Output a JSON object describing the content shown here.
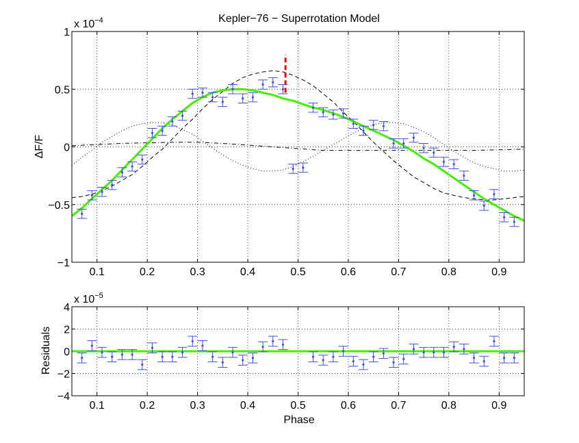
{
  "chart_data": [
    {
      "type": "scatter",
      "title": "Kepler−76 − Superrotation Model",
      "ylabel": "ΔF/F",
      "xlabel": "",
      "exponent_base": "x 10",
      "exponent_power": "−4",
      "xlim": [
        0.05,
        0.95
      ],
      "ylim": [
        -1,
        1
      ],
      "grid": true,
      "x_ticks": [
        0.1,
        0.2,
        0.3,
        0.4,
        0.5,
        0.6,
        0.7,
        0.8,
        0.9
      ],
      "x_tick_labels": [
        "0.1",
        "0.2",
        "0.3",
        "0.4",
        "0.5",
        "0.6",
        "0.7",
        "0.8",
        "0.9"
      ],
      "y_ticks": [
        -1,
        -0.5,
        0,
        0.5,
        1
      ],
      "y_tick_labels": [
        "−1",
        "−0.5",
        "0",
        "0.5",
        "1"
      ],
      "data_points": {
        "x": [
          0.07,
          0.09,
          0.11,
          0.13,
          0.15,
          0.17,
          0.19,
          0.21,
          0.23,
          0.25,
          0.27,
          0.29,
          0.31,
          0.33,
          0.35,
          0.37,
          0.39,
          0.41,
          0.43,
          0.45,
          0.47,
          0.49,
          0.51,
          0.53,
          0.55,
          0.57,
          0.59,
          0.61,
          0.63,
          0.65,
          0.67,
          0.69,
          0.71,
          0.73,
          0.75,
          0.77,
          0.79,
          0.81,
          0.83,
          0.85,
          0.87,
          0.89,
          0.91,
          0.93
        ],
        "y": [
          -0.58,
          -0.42,
          -0.39,
          -0.33,
          -0.22,
          -0.17,
          -0.11,
          0.12,
          0.14,
          0.22,
          0.27,
          0.46,
          0.47,
          0.43,
          0.39,
          0.5,
          0.42,
          0.43,
          0.54,
          0.56,
          0.5,
          -0.19,
          -0.18,
          0.34,
          0.3,
          0.28,
          0.29,
          0.2,
          0.14,
          0.19,
          0.18,
          0.03,
          0.03,
          0.08,
          -0.01,
          -0.05,
          -0.13,
          -0.15,
          -0.25,
          -0.42,
          -0.51,
          -0.41,
          -0.61,
          -0.65
        ],
        "err": [
          0.04,
          0.04,
          0.04,
          0.04,
          0.04,
          0.04,
          0.04,
          0.04,
          0.04,
          0.04,
          0.04,
          0.04,
          0.04,
          0.04,
          0.04,
          0.04,
          0.04,
          0.04,
          0.04,
          0.04,
          0.04,
          0.04,
          0.04,
          0.04,
          0.04,
          0.04,
          0.04,
          0.04,
          0.04,
          0.04,
          0.04,
          0.04,
          0.04,
          0.04,
          0.04,
          0.04,
          0.04,
          0.04,
          0.04,
          0.04,
          0.04,
          0.04,
          0.04,
          0.04
        ]
      },
      "model_curve": {
        "x": [
          0.05,
          0.07,
          0.09,
          0.11,
          0.13,
          0.15,
          0.17,
          0.19,
          0.21,
          0.23,
          0.25,
          0.27,
          0.29,
          0.31,
          0.33,
          0.35,
          0.37,
          0.39,
          0.41,
          0.43,
          0.45,
          0.47,
          0.49,
          0.51,
          0.53,
          0.55,
          0.57,
          0.59,
          0.61,
          0.63,
          0.65,
          0.67,
          0.69,
          0.71,
          0.73,
          0.75,
          0.77,
          0.79,
          0.81,
          0.83,
          0.85,
          0.87,
          0.89,
          0.91,
          0.93,
          0.95
        ],
        "y": [
          -0.6,
          -0.53,
          -0.45,
          -0.37,
          -0.29,
          -0.2,
          -0.11,
          -0.02,
          0.07,
          0.16,
          0.24,
          0.31,
          0.38,
          0.43,
          0.47,
          0.49,
          0.5,
          0.5,
          0.49,
          0.47,
          0.45,
          0.42,
          0.4,
          0.37,
          0.34,
          0.32,
          0.29,
          0.26,
          0.22,
          0.18,
          0.14,
          0.1,
          0.06,
          0.01,
          -0.04,
          -0.1,
          -0.15,
          -0.21,
          -0.27,
          -0.33,
          -0.39,
          -0.45,
          -0.5,
          -0.55,
          -0.6,
          -0.64
        ]
      },
      "dashed_curve": {
        "x": [
          0.05,
          0.07,
          0.09,
          0.11,
          0.13,
          0.15,
          0.17,
          0.19,
          0.21,
          0.23,
          0.25,
          0.27,
          0.29,
          0.31,
          0.33,
          0.35,
          0.37,
          0.39,
          0.41,
          0.43,
          0.45,
          0.47,
          0.49,
          0.51,
          0.53,
          0.55,
          0.57,
          0.59,
          0.61,
          0.63,
          0.65,
          0.67,
          0.69,
          0.71,
          0.73,
          0.75,
          0.77,
          0.79,
          0.81,
          0.83,
          0.85,
          0.87,
          0.89,
          0.91,
          0.93,
          0.95
        ],
        "y": [
          -0.44,
          -0.43,
          -0.41,
          -0.38,
          -0.34,
          -0.29,
          -0.24,
          -0.17,
          -0.09,
          -0.02,
          0.07,
          0.16,
          0.24,
          0.33,
          0.41,
          0.48,
          0.55,
          0.6,
          0.63,
          0.65,
          0.66,
          0.65,
          0.62,
          0.58,
          0.53,
          0.46,
          0.39,
          0.3,
          0.22,
          0.13,
          0.04,
          -0.04,
          -0.12,
          -0.19,
          -0.26,
          -0.31,
          -0.36,
          -0.4,
          -0.42,
          -0.44,
          -0.45,
          -0.46,
          -0.46,
          -0.45,
          -0.44,
          -0.43
        ]
      },
      "dotted_curve": {
        "x": [
          0.05,
          0.07,
          0.09,
          0.11,
          0.13,
          0.15,
          0.17,
          0.19,
          0.21,
          0.23,
          0.25,
          0.27,
          0.29,
          0.31,
          0.33,
          0.35,
          0.37,
          0.39,
          0.41,
          0.43,
          0.45,
          0.47,
          0.49,
          0.51,
          0.53,
          0.55,
          0.57,
          0.59,
          0.61,
          0.63,
          0.65,
          0.67,
          0.69,
          0.71,
          0.73,
          0.75,
          0.77,
          0.79,
          0.81,
          0.83,
          0.85,
          0.87,
          0.89,
          0.91,
          0.93,
          0.95
        ],
        "y": [
          -0.16,
          -0.09,
          -0.03,
          0.04,
          0.09,
          0.14,
          0.18,
          0.2,
          0.21,
          0.21,
          0.19,
          0.15,
          0.11,
          0.05,
          -0.01,
          -0.07,
          -0.12,
          -0.16,
          -0.19,
          -0.21,
          -0.21,
          -0.2,
          -0.17,
          -0.13,
          -0.08,
          -0.03,
          0.02,
          0.07,
          0.12,
          0.16,
          0.19,
          0.21,
          0.21,
          0.2,
          0.17,
          0.13,
          0.08,
          0.02,
          -0.04,
          -0.09,
          -0.14,
          -0.17,
          -0.19,
          -0.21,
          -0.21,
          -0.2
        ]
      },
      "dashdot_curve": {
        "x": [
          0.05,
          0.15,
          0.25,
          0.3,
          0.35,
          0.45,
          0.55,
          0.65,
          0.75,
          0.85,
          0.95
        ],
        "y": [
          0.01,
          0.03,
          0.04,
          0.04,
          0.03,
          0.0,
          -0.03,
          -0.03,
          -0.03,
          -0.03,
          -0.02
        ]
      },
      "marker_line": {
        "x": 0.475,
        "y0": 0.47,
        "y1": 0.8,
        "color": "#ff0000"
      }
    },
    {
      "type": "scatter",
      "title": "",
      "ylabel": "Residuals",
      "xlabel": "Phase",
      "exponent_base": "x 10",
      "exponent_power": "−5",
      "xlim": [
        0.05,
        0.95
      ],
      "ylim": [
        -4,
        4
      ],
      "grid": true,
      "x_ticks": [
        0.1,
        0.2,
        0.3,
        0.4,
        0.5,
        0.6,
        0.7,
        0.8,
        0.9
      ],
      "x_tick_labels": [
        "0.1",
        "0.2",
        "0.3",
        "0.4",
        "0.5",
        "0.6",
        "0.7",
        "0.8",
        "0.9"
      ],
      "y_ticks": [
        -4,
        -2,
        0,
        2,
        4
      ],
      "y_tick_labels": [
        "−4",
        "−2",
        "0",
        "2",
        "4"
      ],
      "data_points": {
        "x": [
          0.07,
          0.09,
          0.11,
          0.13,
          0.15,
          0.17,
          0.19,
          0.21,
          0.23,
          0.25,
          0.27,
          0.29,
          0.31,
          0.33,
          0.35,
          0.37,
          0.39,
          0.41,
          0.43,
          0.45,
          0.47,
          0.53,
          0.55,
          0.57,
          0.59,
          0.61,
          0.63,
          0.65,
          0.67,
          0.69,
          0.71,
          0.73,
          0.75,
          0.77,
          0.79,
          0.81,
          0.83,
          0.85,
          0.87,
          0.89,
          0.91,
          0.93
        ],
        "y": [
          -0.6,
          0.5,
          -0.1,
          -0.5,
          -0.3,
          -0.3,
          -1.2,
          0.3,
          -0.5,
          -0.5,
          -0.1,
          0.9,
          0.5,
          -0.5,
          -1.0,
          -0.1,
          -0.8,
          -0.6,
          0.4,
          0.9,
          0.6,
          -0.5,
          -0.8,
          -0.5,
          0.0,
          -0.9,
          -1.2,
          -0.5,
          -0.2,
          -1.0,
          -0.7,
          0.2,
          -0.1,
          -0.1,
          -0.1,
          0.4,
          0.2,
          -0.6,
          -0.9,
          0.9,
          -0.6,
          -0.6
        ]
      },
      "zero_line": {
        "y": 0
      }
    }
  ],
  "colors": {
    "data": "#3e4de6",
    "model": "#44ee00",
    "marker": "#ff0000",
    "curves": "#000000"
  }
}
